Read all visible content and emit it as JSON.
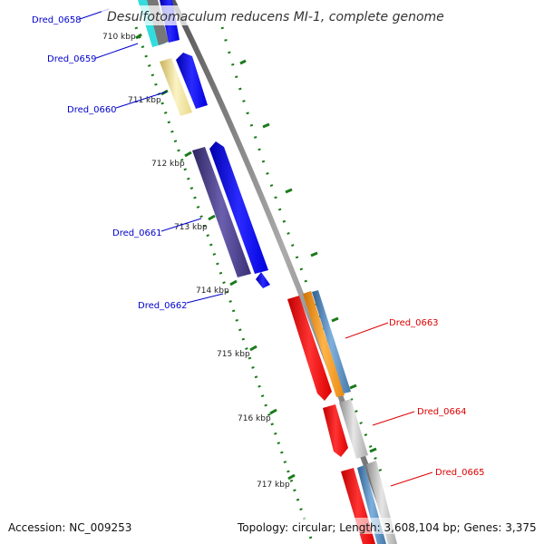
{
  "title": "Desulfotomaculum reducens MI-1, complete genome",
  "footer": {
    "accession": "Accession: NC_009253",
    "stats": "Topology: circular; Length: 3,608,104 bp; Genes: 3,375"
  },
  "ticks": [
    "710 kbp",
    "711 kbp",
    "712 kbp",
    "713 kbp",
    "714 kbp",
    "715 kbp",
    "716 kbp",
    "717 kbp"
  ],
  "genes_left": [
    "Dred_0658",
    "Dred_0659",
    "Dred_0660",
    "Dred_0661",
    "Dred_0662"
  ],
  "genes_right": [
    "Dred_0663",
    "Dred_0664",
    "Dred_0665"
  ],
  "colors": {
    "left_label": "#0000cc",
    "right_label": "#dd0000",
    "backbone": "#777777",
    "tick": "#1a7a1a",
    "gene_blue": "#0000ff",
    "gene_navy": "#4b3f8a",
    "gene_yellow": "#f0e29a",
    "gene_cyan": "#33dddd",
    "gene_red": "#ff0000",
    "gene_orange": "#ff9a1a",
    "gene_steel": "#4f82b5",
    "gene_gray": "#bbbbbb"
  }
}
